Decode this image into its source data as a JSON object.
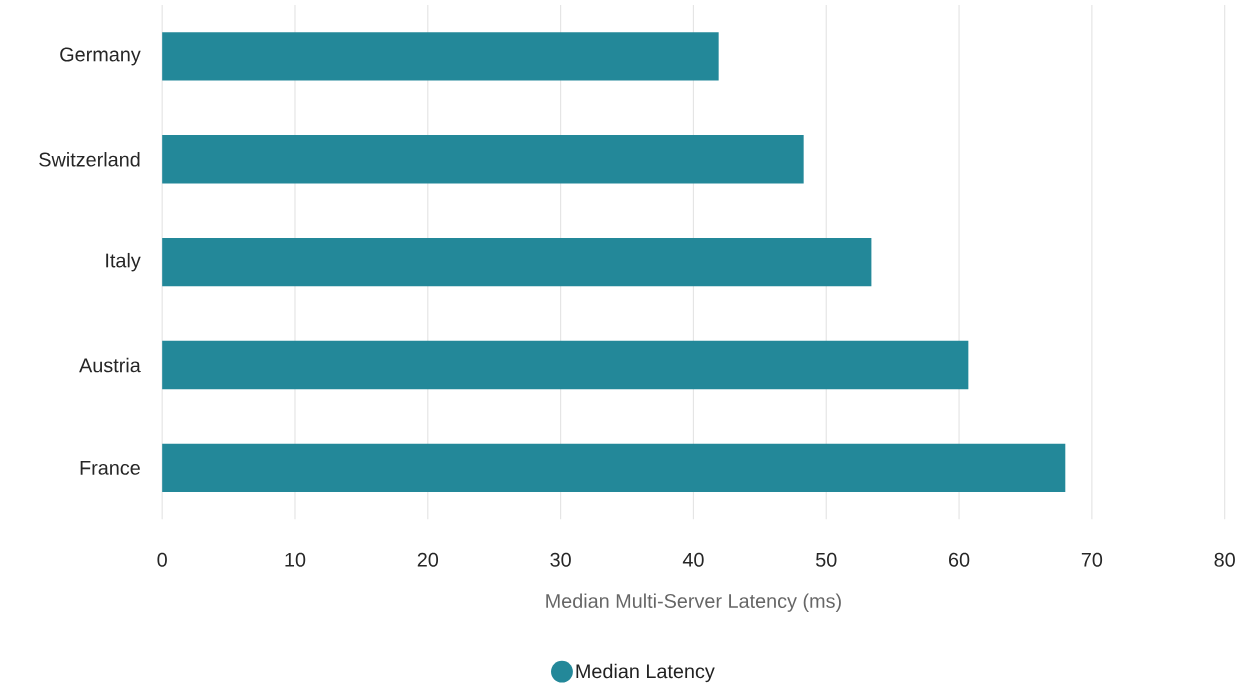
{
  "chart_data": {
    "type": "bar",
    "orientation": "horizontal",
    "categories": [
      "Germany",
      "Switzerland",
      "Italy",
      "Austria",
      "France"
    ],
    "series": [
      {
        "name": "Median Latency",
        "color": "#238899",
        "values": [
          41.9,
          48.3,
          53.4,
          60.7,
          68.0
        ]
      }
    ],
    "xlabel": "Median Multi-Server Latency (ms)",
    "xlim": [
      0,
      80
    ],
    "xticks": [
      0,
      10,
      20,
      30,
      40,
      50,
      60,
      70,
      80
    ],
    "grid": "x",
    "legend": "bottom"
  }
}
